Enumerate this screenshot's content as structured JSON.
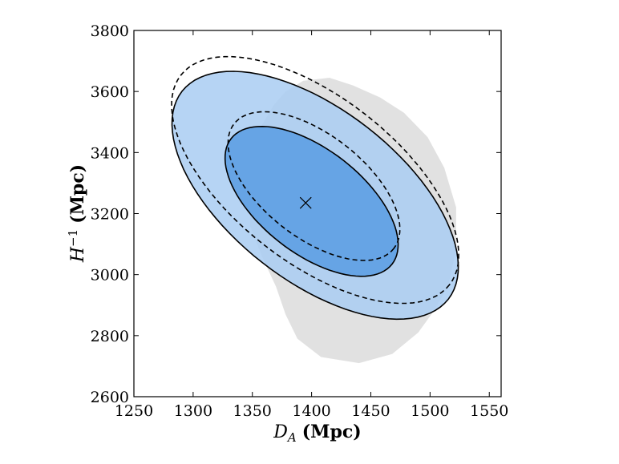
{
  "chart_data": {
    "type": "contour",
    "title": "",
    "xlabel": {
      "symbol": "D",
      "subscript": "A",
      "unit": "(Mpc)"
    },
    "ylabel": {
      "symbol": "H",
      "superscript": "−1",
      "unit": "(Mpc)"
    },
    "xlim": [
      1250,
      1560
    ],
    "ylim": [
      2600,
      3800
    ],
    "xticks": [
      1250,
      1300,
      1350,
      1400,
      1450,
      1500,
      1550
    ],
    "yticks": [
      2600,
      2800,
      3000,
      3200,
      3400,
      3600,
      3800
    ],
    "grid": false,
    "colors": {
      "blue_outer": "#a9cdf2",
      "blue_inner": "#5d9fe3",
      "gray_region": "#e1e1e1",
      "solid_contour": "#000000",
      "dashed_contour": "#000000"
    },
    "marker": {
      "name": "best-fit",
      "symbol": "x",
      "x": 1395,
      "y": 3235
    },
    "contours": [
      {
        "name": "solid-68",
        "style": "solid",
        "fill": "blue_inner",
        "center": [
          1400,
          3240
        ],
        "semi_axes_units": [
          75,
          305
        ],
        "x_range": [
          1333,
          1472
        ],
        "y_range": [
          2980,
          3495
        ]
      },
      {
        "name": "solid-95",
        "style": "solid",
        "fill": "blue_outer",
        "center": [
          1403,
          3260
        ],
        "semi_axes_units": [
          125,
          530
        ],
        "x_range": [
          1290,
          1520
        ],
        "y_range": [
          2835,
          3685
        ]
      },
      {
        "name": "dashed-68",
        "style": "dashed",
        "fill": "none",
        "center": [
          1402,
          3290
        ],
        "semi_axes_units": [
          75,
          300
        ],
        "x_range": [
          1332,
          1470
        ],
        "y_range": [
          3038,
          3548
        ]
      },
      {
        "name": "dashed-95",
        "style": "dashed",
        "fill": "none",
        "center": [
          1403,
          3310
        ],
        "semi_axes_units": [
          125,
          535
        ],
        "x_range": [
          1290,
          1522
        ],
        "y_range": [
          2900,
          3720
        ]
      }
    ],
    "gray_region": {
      "description_points": [
        [
          1368,
          3555
        ],
        [
          1378,
          3600
        ],
        [
          1393,
          3635
        ],
        [
          1415,
          3645
        ],
        [
          1435,
          3620
        ],
        [
          1458,
          3580
        ],
        [
          1478,
          3530
        ],
        [
          1498,
          3450
        ],
        [
          1512,
          3350
        ],
        [
          1522,
          3220
        ],
        [
          1522,
          3080
        ],
        [
          1515,
          2960
        ],
        [
          1503,
          2880
        ],
        [
          1490,
          2810
        ],
        [
          1468,
          2740
        ],
        [
          1440,
          2710
        ],
        [
          1408,
          2730
        ],
        [
          1388,
          2790
        ],
        [
          1378,
          2870
        ],
        [
          1370,
          2960
        ],
        [
          1358,
          3060
        ],
        [
          1348,
          3160
        ],
        [
          1348,
          3280
        ],
        [
          1352,
          3400
        ],
        [
          1358,
          3490
        ]
      ]
    }
  }
}
